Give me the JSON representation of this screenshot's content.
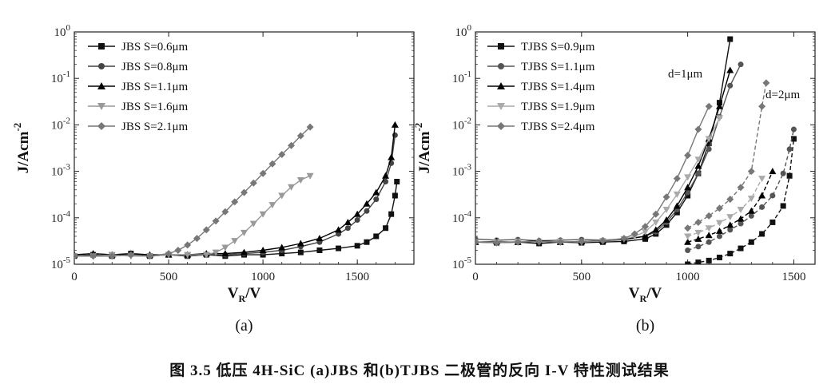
{
  "figure_caption": "图 3.5 低压 4H-SiC (a)JBS 和(b)TJBS 二极管的反向 I-V 特性测试结果",
  "chart_data": [
    {
      "type": "scatter",
      "panel_label": "(a)",
      "xlabel": "V_R/V",
      "ylabel": "J/Acm^-2",
      "xlim": [
        0,
        1800
      ],
      "ylim": [
        1e-05,
        1
      ],
      "yscale": "log",
      "x_ticks": [
        "0",
        "500",
        "1000",
        "1500"
      ],
      "y_ticks": [
        "10^-5",
        "10^-4",
        "10^-3",
        "10^-2",
        "10^-1",
        "10^0"
      ],
      "legend_position": "top-left",
      "series": [
        {
          "name": "JBS S=0.6μm",
          "marker": "square",
          "color": "#111111",
          "x": [
            0,
            100,
            200,
            300,
            400,
            500,
            600,
            700,
            800,
            900,
            1000,
            1100,
            1200,
            1300,
            1400,
            1500,
            1550,
            1600,
            1650,
            1680,
            1700,
            1710
          ],
          "y": [
            1.5e-05,
            1.6e-05,
            1.5e-05,
            1.7e-05,
            1.5e-05,
            1.6e-05,
            1.5e-05,
            1.6e-05,
            1.5e-05,
            1.6e-05,
            1.6e-05,
            1.7e-05,
            1.8e-05,
            2e-05,
            2.2e-05,
            2.5e-05,
            3e-05,
            4e-05,
            6e-05,
            0.00012,
            0.0003,
            0.0006
          ]
        },
        {
          "name": "JBS S=0.8μm",
          "marker": "circle",
          "color": "#444444",
          "x": [
            0,
            100,
            200,
            300,
            400,
            500,
            600,
            700,
            800,
            900,
            1000,
            1100,
            1200,
            1300,
            1400,
            1450,
            1500,
            1550,
            1600,
            1650,
            1680,
            1700
          ],
          "y": [
            1.5e-05,
            1.6e-05,
            1.5e-05,
            1.6e-05,
            1.5e-05,
            1.6e-05,
            1.5e-05,
            1.6e-05,
            1.6e-05,
            1.7e-05,
            1.8e-05,
            2e-05,
            2.4e-05,
            3e-05,
            4.5e-05,
            6e-05,
            9e-05,
            0.00014,
            0.00025,
            0.0006,
            0.0015,
            0.006
          ]
        },
        {
          "name": "JBS S=1.1μm",
          "marker": "triangle-up",
          "color": "#000000",
          "x": [
            0,
            100,
            200,
            300,
            400,
            500,
            600,
            700,
            800,
            900,
            1000,
            1100,
            1200,
            1300,
            1400,
            1450,
            1500,
            1550,
            1600,
            1650,
            1680,
            1700
          ],
          "y": [
            1.6e-05,
            1.7e-05,
            1.6e-05,
            1.7e-05,
            1.6e-05,
            1.6e-05,
            1.6e-05,
            1.7e-05,
            1.7e-05,
            1.8e-05,
            2e-05,
            2.3e-05,
            2.8e-05,
            3.6e-05,
            5.5e-05,
            8e-05,
            0.00012,
            0.0002,
            0.00035,
            0.0008,
            0.002,
            0.01
          ]
        },
        {
          "name": "JBS S=1.6μm",
          "marker": "triangle-down",
          "color": "#999999",
          "x": [
            0,
            100,
            200,
            300,
            400,
            500,
            600,
            700,
            750,
            800,
            850,
            900,
            950,
            1000,
            1050,
            1100,
            1150,
            1200,
            1250
          ],
          "y": [
            1.5e-05,
            1.5e-05,
            1.6e-05,
            1.5e-05,
            1.5e-05,
            1.6e-05,
            1.6e-05,
            1.6e-05,
            1.8e-05,
            2.3e-05,
            3.2e-05,
            4.8e-05,
            7.5e-05,
            0.00012,
            0.00019,
            0.0003,
            0.00046,
            0.00065,
            0.0008
          ]
        },
        {
          "name": "JBS S=2.1μm",
          "marker": "diamond",
          "color": "#777777",
          "x": [
            0,
            100,
            200,
            300,
            400,
            500,
            550,
            600,
            650,
            700,
            750,
            800,
            850,
            900,
            950,
            1000,
            1050,
            1100,
            1150,
            1200,
            1250
          ],
          "y": [
            1.5e-05,
            1.5e-05,
            1.5e-05,
            1.6e-05,
            1.5e-05,
            1.7e-05,
            2e-05,
            2.6e-05,
            3.6e-05,
            5.5e-05,
            8.5e-05,
            0.000135,
            0.00022,
            0.00035,
            0.00056,
            0.0009,
            0.00145,
            0.0023,
            0.0036,
            0.0058,
            0.009
          ]
        }
      ]
    },
    {
      "type": "scatter",
      "panel_label": "(b)",
      "xlabel": "V_R/V",
      "ylabel": "J/Acm^-2",
      "xlim": [
        0,
        1600
      ],
      "ylim": [
        1e-05,
        1
      ],
      "yscale": "log",
      "x_ticks": [
        "0",
        "500",
        "1000",
        "1500"
      ],
      "y_ticks": [
        "10^-5",
        "10^-4",
        "10^-3",
        "10^-2",
        "10^-1",
        "10^0"
      ],
      "legend_position": "top-left",
      "annotations": [
        {
          "text": "d=1μm",
          "x": 1000,
          "y": 0.075
        },
        {
          "text": "d=2μm",
          "x": 1380,
          "y": 0.03
        }
      ],
      "series": [
        {
          "name": "TJBS S=0.9μm",
          "marker": "square",
          "color": "#111111",
          "x_d1": [
            0,
            100,
            200,
            300,
            400,
            500,
            600,
            700,
            800,
            850,
            900,
            950,
            1000,
            1050,
            1100,
            1150,
            1200
          ],
          "y_d1": [
            3e-05,
            2.9e-05,
            3e-05,
            2.8e-05,
            3e-05,
            2.9e-05,
            3e-05,
            3.1e-05,
            3.5e-05,
            4.5e-05,
            7e-05,
            0.00013,
            0.0003,
            0.0009,
            0.004,
            0.03,
            0.7
          ],
          "x_d2": [
            1000,
            1050,
            1100,
            1150,
            1200,
            1250,
            1300,
            1350,
            1400,
            1450,
            1480,
            1500
          ],
          "y_d2": [
            1e-05,
            1.1e-05,
            1.2e-05,
            1.4e-05,
            1.7e-05,
            2.2e-05,
            3e-05,
            4.5e-05,
            8e-05,
            0.00018,
            0.0008,
            0.005
          ]
        },
        {
          "name": "TJBS S=1.1μm",
          "marker": "circle",
          "color": "#555555",
          "x_d1": [
            0,
            100,
            200,
            300,
            400,
            500,
            600,
            700,
            800,
            850,
            900,
            950,
            1000,
            1050,
            1100,
            1150,
            1200,
            1250
          ],
          "y_d1": [
            3.5e-05,
            3.3e-05,
            3.4e-05,
            3.2e-05,
            3.3e-05,
            3.4e-05,
            3.3e-05,
            3.5e-05,
            4e-05,
            5e-05,
            8e-05,
            0.00015,
            0.00035,
            0.0009,
            0.003,
            0.015,
            0.07,
            0.2
          ],
          "x_d2": [
            1000,
            1050,
            1100,
            1150,
            1200,
            1250,
            1300,
            1350,
            1400,
            1450,
            1480,
            1500
          ],
          "y_d2": [
            2e-05,
            2.4e-05,
            3e-05,
            4e-05,
            5.5e-05,
            7.5e-05,
            0.00011,
            0.00017,
            0.0003,
            0.0009,
            0.003,
            0.008
          ]
        },
        {
          "name": "TJBS S=1.4μm",
          "marker": "triangle-up",
          "color": "#000000",
          "x_d1": [
            0,
            100,
            200,
            300,
            400,
            500,
            600,
            700,
            800,
            850,
            900,
            950,
            1000,
            1050,
            1100,
            1150,
            1200
          ],
          "y_d1": [
            3e-05,
            3.1e-05,
            3e-05,
            3.2e-05,
            3e-05,
            3.1e-05,
            3.2e-05,
            3.4e-05,
            4e-05,
            5.5e-05,
            9e-05,
            0.00018,
            0.00045,
            0.0013,
            0.005,
            0.025,
            0.15
          ],
          "x_d2": [
            1000,
            1050,
            1100,
            1150,
            1200,
            1250,
            1300,
            1350,
            1400
          ],
          "y_d2": [
            3e-05,
            3.5e-05,
            4.2e-05,
            5.2e-05,
            7e-05,
            9.5e-05,
            0.00014,
            0.0003,
            0.001
          ]
        },
        {
          "name": "TJBS S=1.9μm",
          "marker": "triangle-down",
          "color": "#aaaaaa",
          "x_d1": [
            0,
            100,
            200,
            300,
            400,
            500,
            600,
            700,
            750,
            800,
            850,
            900,
            950,
            1000,
            1050,
            1100,
            1150
          ],
          "y_d1": [
            3e-05,
            3e-05,
            3.1e-05,
            3e-05,
            3.1e-05,
            3e-05,
            3.2e-05,
            3.5e-05,
            4e-05,
            5e-05,
            8e-05,
            0.00015,
            0.00032,
            0.00075,
            0.0018,
            0.005,
            0.014
          ],
          "x_d2": [
            1000,
            1050,
            1100,
            1150,
            1200,
            1250,
            1300,
            1350
          ],
          "y_d2": [
            4e-05,
            4.8e-05,
            6e-05,
            7.8e-05,
            0.000105,
            0.00015,
            0.00026,
            0.0007
          ]
        },
        {
          "name": "TJBS S=2.4μm",
          "marker": "diamond",
          "color": "#777777",
          "x_d1": [
            0,
            100,
            200,
            300,
            400,
            500,
            600,
            700,
            750,
            800,
            850,
            900,
            950,
            1000,
            1050,
            1100
          ],
          "y_d1": [
            3e-05,
            2.9e-05,
            3e-05,
            3.1e-05,
            3e-05,
            3.1e-05,
            3.2e-05,
            3.6e-05,
            4.5e-05,
            6.5e-05,
            0.00012,
            0.00028,
            0.0007,
            0.0022,
            0.008,
            0.025
          ],
          "x_d2": [
            1000,
            1050,
            1100,
            1150,
            1200,
            1250,
            1300,
            1350,
            1370
          ],
          "y_d2": [
            6e-05,
            8e-05,
            0.00011,
            0.00016,
            0.00025,
            0.00045,
            0.001,
            0.025,
            0.08
          ]
        }
      ]
    }
  ]
}
